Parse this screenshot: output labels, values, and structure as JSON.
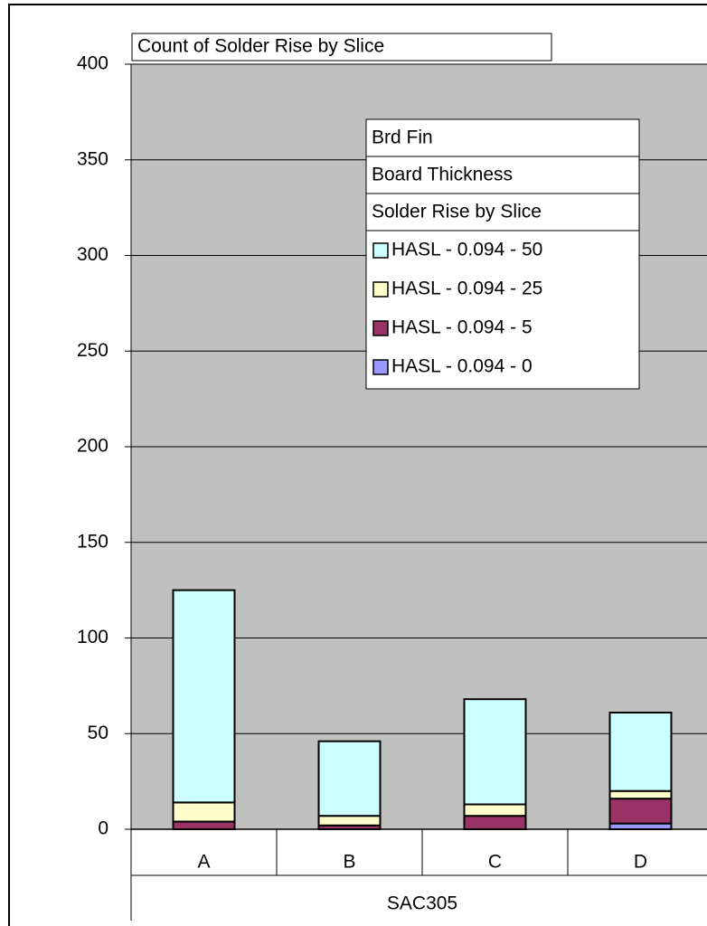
{
  "chart_data": {
    "type": "bar",
    "stacked": true,
    "title": "Count of Solder Rise by Slice",
    "legend_fields": [
      "Brd Fin",
      "Board Thickness",
      "Solder Rise by Slice"
    ],
    "group_label": "SAC305",
    "categories": [
      "A",
      "B",
      "C",
      "D"
    ],
    "series": [
      {
        "name": "HASL - 0.094 - 0",
        "color": "#9999ff",
        "values": [
          0,
          0,
          0,
          3
        ]
      },
      {
        "name": "HASL - 0.094 - 5",
        "color": "#993366",
        "values": [
          4,
          2,
          7,
          13
        ]
      },
      {
        "name": "HASL - 0.094 - 25",
        "color": "#ffffcc",
        "values": [
          10,
          5,
          6,
          4
        ]
      },
      {
        "name": "HASL - 0.094 - 50",
        "color": "#ccffff",
        "values": [
          111,
          39,
          55,
          41
        ]
      }
    ],
    "ylim": [
      0,
      400
    ],
    "yticks": [
      0,
      50,
      100,
      150,
      200,
      250,
      300,
      350,
      400
    ],
    "grid": true,
    "plot_color": "#c0c0c0"
  }
}
